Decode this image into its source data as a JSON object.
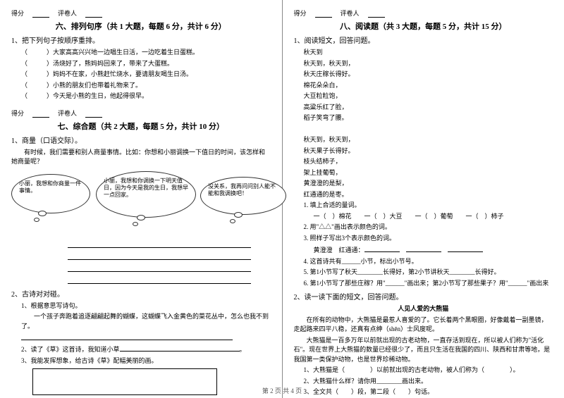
{
  "left": {
    "scorebox": {
      "label1": "得分",
      "label2": "评卷人"
    },
    "section6": {
      "title": "六、排列句序（共 1 大题，每题 6 分，共计 6 分）",
      "q1": "1、把下列句子按顺序重排。",
      "lines": [
        "）大家高高兴兴地一边唱生日活，一边吃着生日蛋糕。",
        "）汤烧好了，熊妈妈回来了，带来了大蛋糕。",
        "）妈妈不在家，小熊赶忙烧水，要请朋友喝生日汤。",
        "）小熊的朋友们也带着礼物来了。",
        "）今天是小熊的生日，他起得很早。"
      ]
    },
    "section7": {
      "title": "七、综合题（共 2 大题，每题 5 分，共计 10 分）",
      "q1_title": "1、商量（口语交际）。",
      "q1_body": "　　有时候，我们需要和别人商量事情。比如：你想和小丽调换一下值日的时间，该怎样和她商量呢？",
      "bubble1": "小丽，我想和你商量一件事情。",
      "bubble2": "小丽，我想和你调换一下明天值日，因为今天是我的生日，我想早一点回家。",
      "bubble3": "没关系，我再问问别人能不能和我调换吧！",
      "q2_title": "2、古诗对对碰。",
      "q2_1": "1、根据意思写诗句。",
      "q2_1_body": "　　一个孩子奔跑着追逐翩翩起舞的蝴蝶，这蝴蝶飞入金黄色的菜花丛中，怎么也我不到了。",
      "q2_2": "2、读了《草》这首诗，我知道小草",
      "q2_3": "3、我能发挥想象，给古诗《草》配幅美丽的画。"
    }
  },
  "right": {
    "scorebox": {
      "label1": "得分",
      "label2": "评卷人"
    },
    "section8": {
      "title": "八、阅读题（共 3 大题，每题 5 分，共计 15 分）",
      "q1_title": "1、阅读短文，回答问题。",
      "poem": [
        "秋天到",
        "秋天到，秋天到，",
        "秋天庄稼长得好。",
        "棉花朵朵白，",
        "大豆粒粒饱，",
        "高粱乐红了脸，",
        "稻子笑弯了腰。",
        "",
        "秋天到，秋天到，",
        "秋天果子长得好。",
        "枝头结柿子，",
        "架上挂葡萄，",
        "黄澄澄的是梨，",
        "红通通的是枣。"
      ],
      "sub1": "1. 填上合适的量词。",
      "sub1_line": "一（　）棉花　　一（　）大豆　　一（　）葡萄　　一（　）柿子",
      "sub2": "2. 用\"△△\"画出表示颜色的词。",
      "sub3": "3. 照样子写出3个表示颜色的词。",
      "sub3_line": "黄澄澄　红通通：",
      "sub4": "4. 这首诗共有______小节，标出小节号。",
      "sub5": "5. 第1小节写了秋天________长得好，第2小节讲秋天________长得好。",
      "sub6": "6. 第1小节写了那些庄稼？用\"______\"画出来；第2小节写了那些果子？用\"______\"画出来",
      "q2_title": "2、读一读下面的短文，回答问题。",
      "story_title": "人见人爱的大熊猫",
      "story_p1": "　　在所有的动物中，大熊猫是最惹人喜爱的了。它长着两个黑眼圈，好像戴着一副墨镜，走起路来四平八稳，还真有点绅（shēn）士风度呢。",
      "story_p2": "　　大熊猫是一百多万年以前就出现的古老动物，一直存活到现在，所以被人们称为\"活化石\"。现在世界上大熊猫的数量已经很少了，而且只生活在我国的四川、陕西和甘肃等地，是我国第一类保护动物，也是世界珍稀动物。",
      "story_s1": "1、大熊猫是（　　　　）以前就出现的古老动物，被人们称为（　　　　）。",
      "story_s2": "2、大熊猫什么样？请你用________画出来。",
      "story_s3": "3、全文共（　　）段，第二段（　　）句话。"
    }
  },
  "footer": "第 2 页 共 4 页"
}
